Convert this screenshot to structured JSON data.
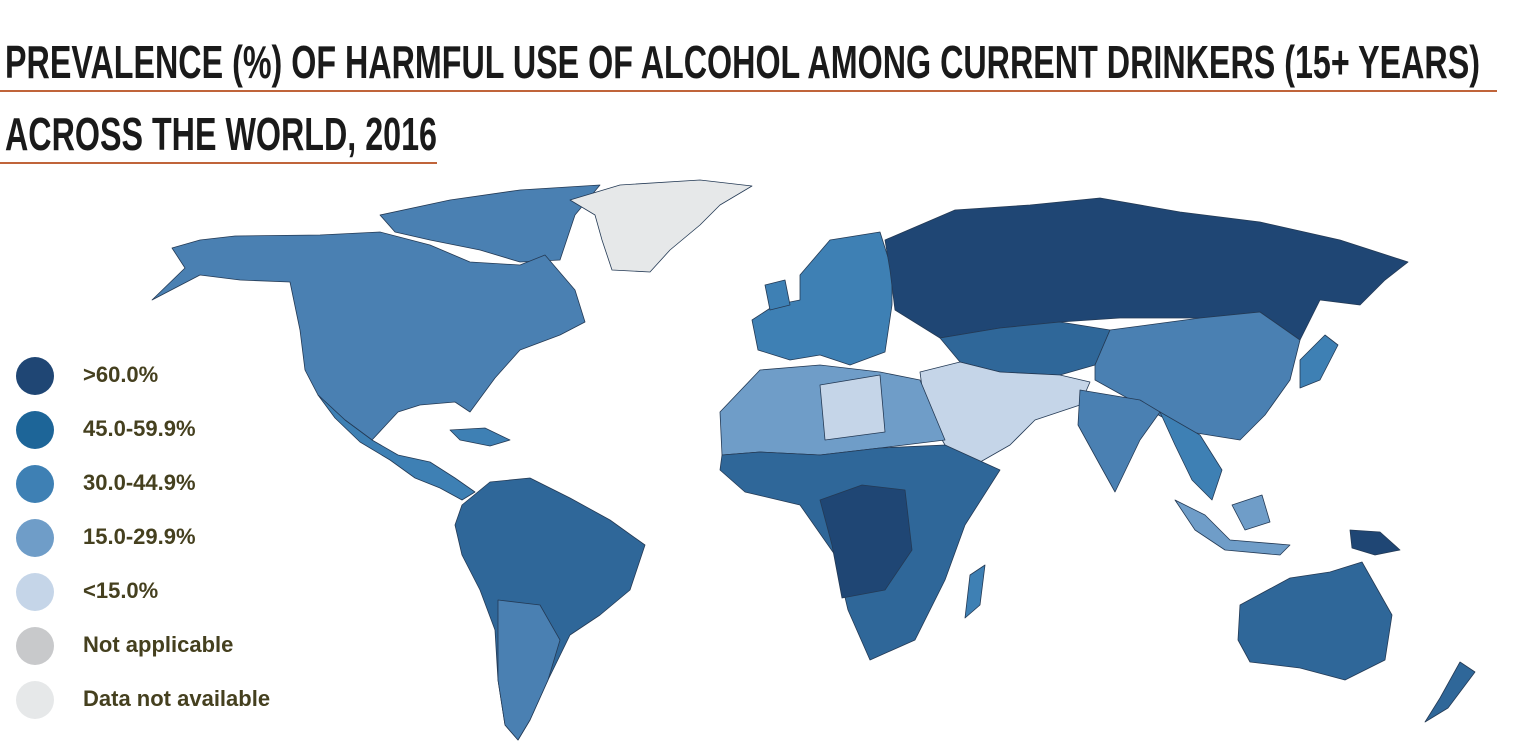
{
  "title_lines": [
    "PREVALENCE (%) OF HARMFUL USE OF ALCOHOL AMONG CURRENT DRINKERS (15+ YEARS)",
    "ACROSS THE WORLD, 2016"
  ],
  "legend": [
    {
      "label": ">60.0%",
      "color": "#1f4674"
    },
    {
      "label": "45.0-59.9%",
      "color": "#1d6598"
    },
    {
      "label": "30.0-44.9%",
      "color": "#3e80b4"
    },
    {
      "label": "15.0-29.9%",
      "color": "#6f9dc8"
    },
    {
      "label": "<15.0%",
      "color": "#c5d5e8"
    },
    {
      "label": "Not applicable",
      "color": "#c8c9cb"
    },
    {
      "label": "Data not available",
      "color": "#e6e8e9"
    }
  ]
}
